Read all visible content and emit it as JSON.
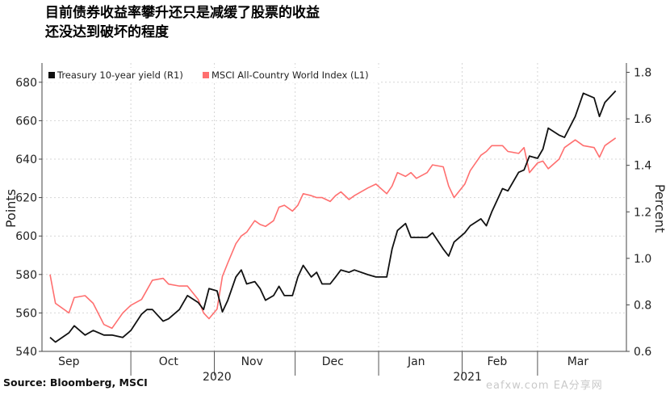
{
  "chart_data": {
    "type": "line",
    "title_lines": [
      "目前债券收益率攀升还只是减缓了股票的收益",
      "还没达到破坏的程度"
    ],
    "ylabel_left": "Points",
    "ylabel_right": "Percent",
    "ylim_left": [
      540,
      690
    ],
    "ylim_right": [
      0.6,
      1.84
    ],
    "yticks_left": [
      "540",
      "560",
      "580",
      "600",
      "620",
      "640",
      "660",
      "680"
    ],
    "yticks_right": [
      "0.6",
      "0.8",
      "1.0",
      "1.2",
      "1.4",
      "1.6",
      "1.8"
    ],
    "x_months": [
      "Sep",
      "Oct",
      "Nov",
      "Dec",
      "Jan",
      "Feb",
      "Mar"
    ],
    "x_years": [
      "2020",
      "2021"
    ],
    "grid": true,
    "legend_placement": "top-left",
    "series": [
      {
        "name": "Treasury 10-year yield (R1)",
        "axis": "right",
        "color": "#111111",
        "values": [
          [
            "2020-09-01",
            0.66
          ],
          [
            "2020-09-03",
            0.64
          ],
          [
            "2020-09-08",
            0.68
          ],
          [
            "2020-09-10",
            0.71
          ],
          [
            "2020-09-14",
            0.67
          ],
          [
            "2020-09-17",
            0.69
          ],
          [
            "2020-09-21",
            0.67
          ],
          [
            "2020-09-24",
            0.67
          ],
          [
            "2020-09-28",
            0.66
          ],
          [
            "2020-10-01",
            0.69
          ],
          [
            "2020-10-05",
            0.76
          ],
          [
            "2020-10-07",
            0.78
          ],
          [
            "2020-10-09",
            0.78
          ],
          [
            "2020-10-13",
            0.73
          ],
          [
            "2020-10-15",
            0.74
          ],
          [
            "2020-10-19",
            0.78
          ],
          [
            "2020-10-22",
            0.84
          ],
          [
            "2020-10-26",
            0.81
          ],
          [
            "2020-10-28",
            0.78
          ],
          [
            "2020-10-30",
            0.87
          ],
          [
            "2020-11-02",
            0.86
          ],
          [
            "2020-11-04",
            0.77
          ],
          [
            "2020-11-06",
            0.82
          ],
          [
            "2020-11-09",
            0.92
          ],
          [
            "2020-11-11",
            0.95
          ],
          [
            "2020-11-13",
            0.89
          ],
          [
            "2020-11-16",
            0.9
          ],
          [
            "2020-11-18",
            0.87
          ],
          [
            "2020-11-20",
            0.82
          ],
          [
            "2020-11-23",
            0.84
          ],
          [
            "2020-11-25",
            0.88
          ],
          [
            "2020-11-27",
            0.84
          ],
          [
            "2020-11-30",
            0.84
          ],
          [
            "2020-12-02",
            0.92
          ],
          [
            "2020-12-04",
            0.97
          ],
          [
            "2020-12-07",
            0.92
          ],
          [
            "2020-12-09",
            0.94
          ],
          [
            "2020-12-11",
            0.89
          ],
          [
            "2020-12-14",
            0.89
          ],
          [
            "2020-12-16",
            0.92
          ],
          [
            "2020-12-18",
            0.95
          ],
          [
            "2020-12-21",
            0.94
          ],
          [
            "2020-12-23",
            0.95
          ],
          [
            "2020-12-28",
            0.93
          ],
          [
            "2020-12-31",
            0.92
          ],
          [
            "2021-01-04",
            0.92
          ],
          [
            "2021-01-06",
            1.04
          ],
          [
            "2021-01-08",
            1.12
          ],
          [
            "2021-01-11",
            1.15
          ],
          [
            "2021-01-13",
            1.09
          ],
          [
            "2021-01-15",
            1.09
          ],
          [
            "2021-01-19",
            1.09
          ],
          [
            "2021-01-21",
            1.11
          ],
          [
            "2021-01-25",
            1.04
          ],
          [
            "2021-01-27",
            1.01
          ],
          [
            "2021-01-29",
            1.07
          ],
          [
            "2021-02-02",
            1.11
          ],
          [
            "2021-02-04",
            1.14
          ],
          [
            "2021-02-08",
            1.17
          ],
          [
            "2021-02-10",
            1.14
          ],
          [
            "2021-02-12",
            1.2
          ],
          [
            "2021-02-16",
            1.3
          ],
          [
            "2021-02-18",
            1.29
          ],
          [
            "2021-02-22",
            1.37
          ],
          [
            "2021-02-24",
            1.38
          ],
          [
            "2021-02-26",
            1.44
          ],
          [
            "2021-03-01",
            1.43
          ],
          [
            "2021-03-03",
            1.47
          ],
          [
            "2021-03-05",
            1.56
          ],
          [
            "2021-03-09",
            1.53
          ],
          [
            "2021-03-11",
            1.52
          ],
          [
            "2021-03-15",
            1.61
          ],
          [
            "2021-03-18",
            1.71
          ],
          [
            "2021-03-22",
            1.69
          ],
          [
            "2021-03-24",
            1.61
          ],
          [
            "2021-03-26",
            1.67
          ],
          [
            "2021-03-30",
            1.72
          ]
        ]
      },
      {
        "name": "MSCI All-Country World Index (L1)",
        "axis": "left",
        "color": "#ff6f6f",
        "values": [
          [
            "2020-09-01",
            580
          ],
          [
            "2020-09-03",
            565
          ],
          [
            "2020-09-08",
            560
          ],
          [
            "2020-09-10",
            568
          ],
          [
            "2020-09-14",
            569
          ],
          [
            "2020-09-17",
            565
          ],
          [
            "2020-09-21",
            554
          ],
          [
            "2020-09-24",
            552
          ],
          [
            "2020-09-28",
            560
          ],
          [
            "2020-10-01",
            564
          ],
          [
            "2020-10-05",
            567
          ],
          [
            "2020-10-07",
            572
          ],
          [
            "2020-10-09",
            577
          ],
          [
            "2020-10-13",
            578
          ],
          [
            "2020-10-15",
            575
          ],
          [
            "2020-10-19",
            574
          ],
          [
            "2020-10-22",
            574
          ],
          [
            "2020-10-26",
            567
          ],
          [
            "2020-10-28",
            560
          ],
          [
            "2020-10-30",
            557
          ],
          [
            "2020-11-02",
            562
          ],
          [
            "2020-11-04",
            579
          ],
          [
            "2020-11-06",
            586
          ],
          [
            "2020-11-09",
            596
          ],
          [
            "2020-11-11",
            600
          ],
          [
            "2020-11-13",
            602
          ],
          [
            "2020-11-16",
            608
          ],
          [
            "2020-11-18",
            606
          ],
          [
            "2020-11-20",
            605
          ],
          [
            "2020-11-23",
            608
          ],
          [
            "2020-11-25",
            615
          ],
          [
            "2020-11-27",
            616
          ],
          [
            "2020-11-30",
            613
          ],
          [
            "2020-12-02",
            616
          ],
          [
            "2020-12-04",
            622
          ],
          [
            "2020-12-07",
            621
          ],
          [
            "2020-12-09",
            620
          ],
          [
            "2020-12-11",
            620
          ],
          [
            "2020-12-14",
            618
          ],
          [
            "2020-12-16",
            621
          ],
          [
            "2020-12-18",
            623
          ],
          [
            "2020-12-21",
            619
          ],
          [
            "2020-12-23",
            621
          ],
          [
            "2020-12-28",
            625
          ],
          [
            "2020-12-31",
            627
          ],
          [
            "2021-01-04",
            622
          ],
          [
            "2021-01-06",
            626
          ],
          [
            "2021-01-08",
            633
          ],
          [
            "2021-01-11",
            631
          ],
          [
            "2021-01-13",
            633
          ],
          [
            "2021-01-15",
            630
          ],
          [
            "2021-01-19",
            633
          ],
          [
            "2021-01-21",
            637
          ],
          [
            "2021-01-25",
            636
          ],
          [
            "2021-01-27",
            626
          ],
          [
            "2021-01-29",
            620
          ],
          [
            "2021-02-02",
            627
          ],
          [
            "2021-02-04",
            634
          ],
          [
            "2021-02-08",
            642
          ],
          [
            "2021-02-10",
            644
          ],
          [
            "2021-02-12",
            647
          ],
          [
            "2021-02-16",
            647
          ],
          [
            "2021-02-18",
            644
          ],
          [
            "2021-02-22",
            643
          ],
          [
            "2021-02-24",
            646
          ],
          [
            "2021-02-26",
            633
          ],
          [
            "2021-03-01",
            638
          ],
          [
            "2021-03-03",
            639
          ],
          [
            "2021-03-05",
            635
          ],
          [
            "2021-03-09",
            640
          ],
          [
            "2021-03-11",
            646
          ],
          [
            "2021-03-15",
            650
          ],
          [
            "2021-03-18",
            647
          ],
          [
            "2021-03-22",
            646
          ],
          [
            "2021-03-24",
            641
          ],
          [
            "2021-03-26",
            647
          ],
          [
            "2021-03-30",
            651
          ]
        ]
      }
    ]
  },
  "source": "Source: Bloomberg, MSCI",
  "watermark": "eafxw.com  EA分享网"
}
